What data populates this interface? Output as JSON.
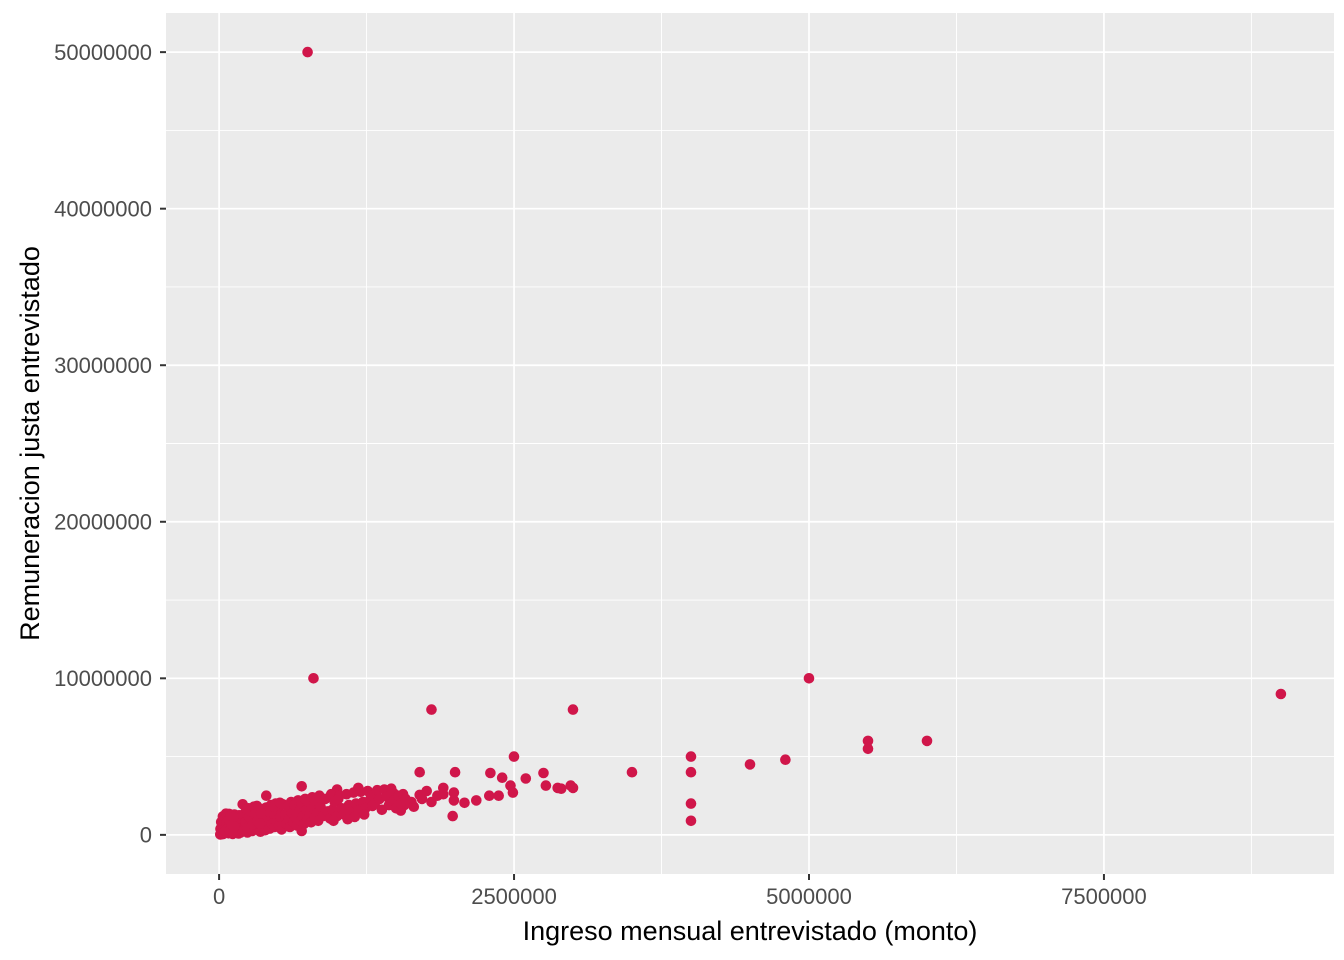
{
  "chart_data": {
    "type": "scatter",
    "title": "",
    "xlabel": "Ingreso mensual entrevistado (monto)",
    "ylabel": "Remuneracion justa entrevistado",
    "xlim": [
      -450000,
      9450000
    ],
    "ylim": [
      -2500000,
      52500000
    ],
    "grid": true,
    "legend": "none",
    "x_ticks": [
      {
        "value": 0,
        "label": "0"
      },
      {
        "value": 2500000,
        "label": "2500000"
      },
      {
        "value": 5000000,
        "label": "5000000"
      },
      {
        "value": 7500000,
        "label": "7500000"
      }
    ],
    "y_ticks": [
      {
        "value": 0,
        "label": "0"
      },
      {
        "value": 10000000,
        "label": "10000000"
      },
      {
        "value": 20000000,
        "label": "20000000"
      },
      {
        "value": 30000000,
        "label": "30000000"
      },
      {
        "value": 40000000,
        "label": "40000000"
      },
      {
        "value": 50000000,
        "label": "50000000"
      }
    ],
    "style": {
      "panel_bg": "#EBEBEB",
      "grid_major": "#FFFFFF",
      "grid_minor": "#FFFFFF",
      "point_color": "#D0164A",
      "axis_text_color": "#4D4D4D",
      "axis_title_color": "#000000",
      "tick_mark_color": "#333333",
      "outer_bg": "#FFFFFF",
      "point_radius": 5.3
    },
    "points": [
      [
        750000,
        50000000
      ],
      [
        800000,
        10000000
      ],
      [
        5000000,
        10000000
      ],
      [
        9000000,
        9000000
      ],
      [
        1800000,
        8000000
      ],
      [
        3000000,
        8000000
      ],
      [
        6000000,
        6000000
      ],
      [
        5500000,
        6000000
      ],
      [
        5500000,
        5500000
      ],
      [
        2500000,
        5000000
      ],
      [
        4000000,
        5000000
      ],
      [
        4800000,
        4800000
      ],
      [
        4500000,
        4500000
      ],
      [
        4000000,
        4000000
      ],
      [
        3500000,
        4000000
      ],
      [
        4000000,
        2000000
      ],
      [
        4000000,
        900000
      ],
      [
        3000000,
        3000000
      ],
      [
        2900000,
        2950000
      ],
      [
        700000,
        250000
      ],
      [
        1700000,
        4000000
      ],
      [
        2000000,
        4000000
      ],
      [
        2300000,
        3950000
      ],
      [
        2400000,
        3650000
      ],
      [
        2600000,
        3600000
      ],
      [
        2750000,
        3950000
      ],
      [
        1900000,
        3000000
      ],
      [
        1700000,
        2550000
      ],
      [
        1630000,
        2100000
      ],
      [
        1570000,
        1900000
      ],
      [
        1540000,
        1550000
      ],
      [
        1990000,
        2700000
      ],
      [
        1990000,
        2200000
      ],
      [
        2080000,
        2050000
      ],
      [
        2180000,
        2200000
      ],
      [
        2290000,
        2500000
      ],
      [
        2370000,
        2500000
      ],
      [
        2470000,
        3150000
      ],
      [
        2490000,
        2700000
      ],
      [
        2770000,
        3150000
      ],
      [
        2870000,
        3000000
      ],
      [
        2980000,
        3150000
      ],
      [
        200000,
        1950000
      ],
      [
        400000,
        2500000
      ],
      [
        700000,
        3100000
      ],
      [
        1000000,
        2900000
      ],
      [
        1180000,
        3000000
      ],
      [
        1480000,
        2650000
      ],
      [
        15000,
        50000
      ],
      [
        20000,
        120000
      ],
      [
        25000,
        300000
      ],
      [
        30000,
        80000
      ],
      [
        35000,
        450000
      ],
      [
        40000,
        200000
      ],
      [
        45000,
        700000
      ],
      [
        50000,
        150000
      ],
      [
        55000,
        950000
      ],
      [
        60000,
        350000
      ],
      [
        65000,
        1200000
      ],
      [
        70000,
        250000
      ],
      [
        75000,
        600000
      ],
      [
        80000,
        100000
      ],
      [
        85000,
        1340000
      ],
      [
        90000,
        500000
      ],
      [
        95000,
        900000
      ],
      [
        100000,
        180000
      ],
      [
        105000,
        1100000
      ],
      [
        110000,
        400000
      ],
      [
        115000,
        60000
      ],
      [
        120000,
        750000
      ],
      [
        125000,
        280000
      ],
      [
        130000,
        1300000
      ],
      [
        135000,
        220000
      ],
      [
        140000,
        850000
      ],
      [
        145000,
        130000
      ],
      [
        150000,
        1000000
      ],
      [
        155000,
        320000
      ],
      [
        160000,
        550000
      ],
      [
        165000,
        90000
      ],
      [
        170000,
        1250000
      ],
      [
        175000,
        420000
      ],
      [
        180000,
        680000
      ],
      [
        185000,
        160000
      ],
      [
        190000,
        1150000
      ],
      [
        195000,
        270000
      ],
      [
        200000,
        980000
      ],
      [
        12000,
        380000
      ],
      [
        28000,
        730000
      ],
      [
        42000,
        110000
      ],
      [
        58000,
        1350000
      ],
      [
        72000,
        480000
      ],
      [
        88000,
        620000
      ],
      [
        102000,
        210000
      ],
      [
        118000,
        880000
      ],
      [
        132000,
        140000
      ],
      [
        148000,
        1050000
      ],
      [
        10000,
        30000
      ],
      [
        22000,
        40000
      ],
      [
        36000,
        60000
      ],
      [
        18000,
        820000
      ],
      [
        24000,
        560000
      ],
      [
        32000,
        1180000
      ],
      [
        38000,
        330000
      ],
      [
        48000,
        1020000
      ],
      [
        52000,
        240000
      ],
      [
        62000,
        780000
      ],
      [
        68000,
        1280000
      ],
      [
        78000,
        440000
      ],
      [
        82000,
        960000
      ],
      [
        92000,
        290000
      ],
      [
        98000,
        1220000
      ],
      [
        108000,
        660000
      ],
      [
        112000,
        170000
      ],
      [
        122000,
        1120000
      ],
      [
        128000,
        520000
      ],
      [
        210000,
        300000
      ],
      [
        220000,
        1400000
      ],
      [
        230000,
        600000
      ],
      [
        240000,
        150000
      ],
      [
        250000,
        1700000
      ],
      [
        260000,
        450000
      ],
      [
        270000,
        1000000
      ],
      [
        280000,
        250000
      ],
      [
        290000,
        1550000
      ],
      [
        300000,
        750000
      ],
      [
        310000,
        380000
      ],
      [
        320000,
        1850000
      ],
      [
        330000,
        550000
      ],
      [
        340000,
        1200000
      ],
      [
        350000,
        200000
      ],
      [
        360000,
        1650000
      ],
      [
        370000,
        480000
      ],
      [
        380000,
        900000
      ],
      [
        390000,
        300000
      ],
      [
        400000,
        1750000
      ],
      [
        410000,
        650000
      ],
      [
        420000,
        1100000
      ],
      [
        430000,
        400000
      ],
      [
        440000,
        1900000
      ],
      [
        450000,
        700000
      ],
      [
        460000,
        1350000
      ],
      [
        470000,
        500000
      ],
      [
        480000,
        2000000
      ],
      [
        490000,
        850000
      ],
      [
        500000,
        1500000
      ],
      [
        510000,
        600000
      ],
      [
        520000,
        1150000
      ],
      [
        530000,
        350000
      ],
      [
        540000,
        1950000
      ],
      [
        550000,
        800000
      ],
      [
        215000,
        1250000
      ],
      [
        265000,
        950000
      ],
      [
        315000,
        1450000
      ],
      [
        365000,
        1050000
      ],
      [
        415000,
        1500000
      ],
      [
        465000,
        1800000
      ],
      [
        515000,
        2050000
      ],
      [
        225000,
        820000
      ],
      [
        235000,
        1600000
      ],
      [
        245000,
        480000
      ],
      [
        255000,
        1150000
      ],
      [
        275000,
        1480000
      ],
      [
        285000,
        680000
      ],
      [
        295000,
        1800000
      ],
      [
        305000,
        1300000
      ],
      [
        325000,
        900000
      ],
      [
        335000,
        1700000
      ],
      [
        345000,
        720000
      ],
      [
        355000,
        1400000
      ],
      [
        560000,
        1300000
      ],
      [
        570000,
        700000
      ],
      [
        580000,
        1800000
      ],
      [
        590000,
        1000000
      ],
      [
        600000,
        500000
      ],
      [
        610000,
        2100000
      ],
      [
        620000,
        1400000
      ],
      [
        630000,
        800000
      ],
      [
        640000,
        1900000
      ],
      [
        650000,
        1100000
      ],
      [
        660000,
        600000
      ],
      [
        670000,
        2200000
      ],
      [
        680000,
        1500000
      ],
      [
        690000,
        900000
      ],
      [
        700000,
        2000000
      ],
      [
        710000,
        1200000
      ],
      [
        720000,
        700000
      ],
      [
        730000,
        2300000
      ],
      [
        740000,
        1600000
      ],
      [
        750000,
        1000000
      ],
      [
        760000,
        2100000
      ],
      [
        770000,
        1300000
      ],
      [
        780000,
        800000
      ],
      [
        790000,
        2400000
      ],
      [
        800000,
        1700000
      ],
      [
        810000,
        1100000
      ],
      [
        820000,
        2200000
      ],
      [
        830000,
        1400000
      ],
      [
        840000,
        900000
      ],
      [
        850000,
        2500000
      ],
      [
        860000,
        1800000
      ],
      [
        880000,
        1200000
      ],
      [
        900000,
        2300000
      ],
      [
        920000,
        1500000
      ],
      [
        940000,
        1050000
      ],
      [
        950000,
        2600000
      ],
      [
        960000,
        1600000
      ],
      [
        980000,
        2100000
      ],
      [
        1000000,
        1200000
      ],
      [
        1020000,
        2500000
      ],
      [
        1040000,
        1700000
      ],
      [
        1060000,
        1300000
      ],
      [
        1080000,
        2600000
      ],
      [
        1100000,
        1900000
      ],
      [
        1120000,
        1450000
      ],
      [
        1140000,
        2700000
      ],
      [
        1160000,
        2000000
      ],
      [
        1180000,
        1550000
      ],
      [
        1200000,
        2750000
      ],
      [
        1220000,
        2100000
      ],
      [
        1240000,
        1700000
      ],
      [
        1260000,
        2800000
      ],
      [
        1280000,
        2250000
      ],
      [
        1300000,
        1850000
      ],
      [
        970000,
        900000
      ],
      [
        1010000,
        2300000
      ],
      [
        1090000,
        1000000
      ],
      [
        1150000,
        1150000
      ],
      [
        1230000,
        1300000
      ],
      [
        1290000,
        2500000
      ],
      [
        1320000,
        2000000
      ],
      [
        1340000,
        2850000
      ],
      [
        1360000,
        2300000
      ],
      [
        1380000,
        1600000
      ],
      [
        1400000,
        2900000
      ],
      [
        1420000,
        2450000
      ],
      [
        1440000,
        1900000
      ],
      [
        1460000,
        2950000
      ],
      [
        1480000,
        2200000
      ],
      [
        1500000,
        1700000
      ],
      [
        1520000,
        2500000
      ],
      [
        1540000,
        2000000
      ],
      [
        1560000,
        2600000
      ],
      [
        1580000,
        2300000
      ],
      [
        1650000,
        1800000
      ],
      [
        1720000,
        2300000
      ],
      [
        1800000,
        2100000
      ],
      [
        1850000,
        2500000
      ],
      [
        1980000,
        1200000
      ],
      [
        1760000,
        2800000
      ],
      [
        1900000,
        2600000
      ]
    ]
  }
}
